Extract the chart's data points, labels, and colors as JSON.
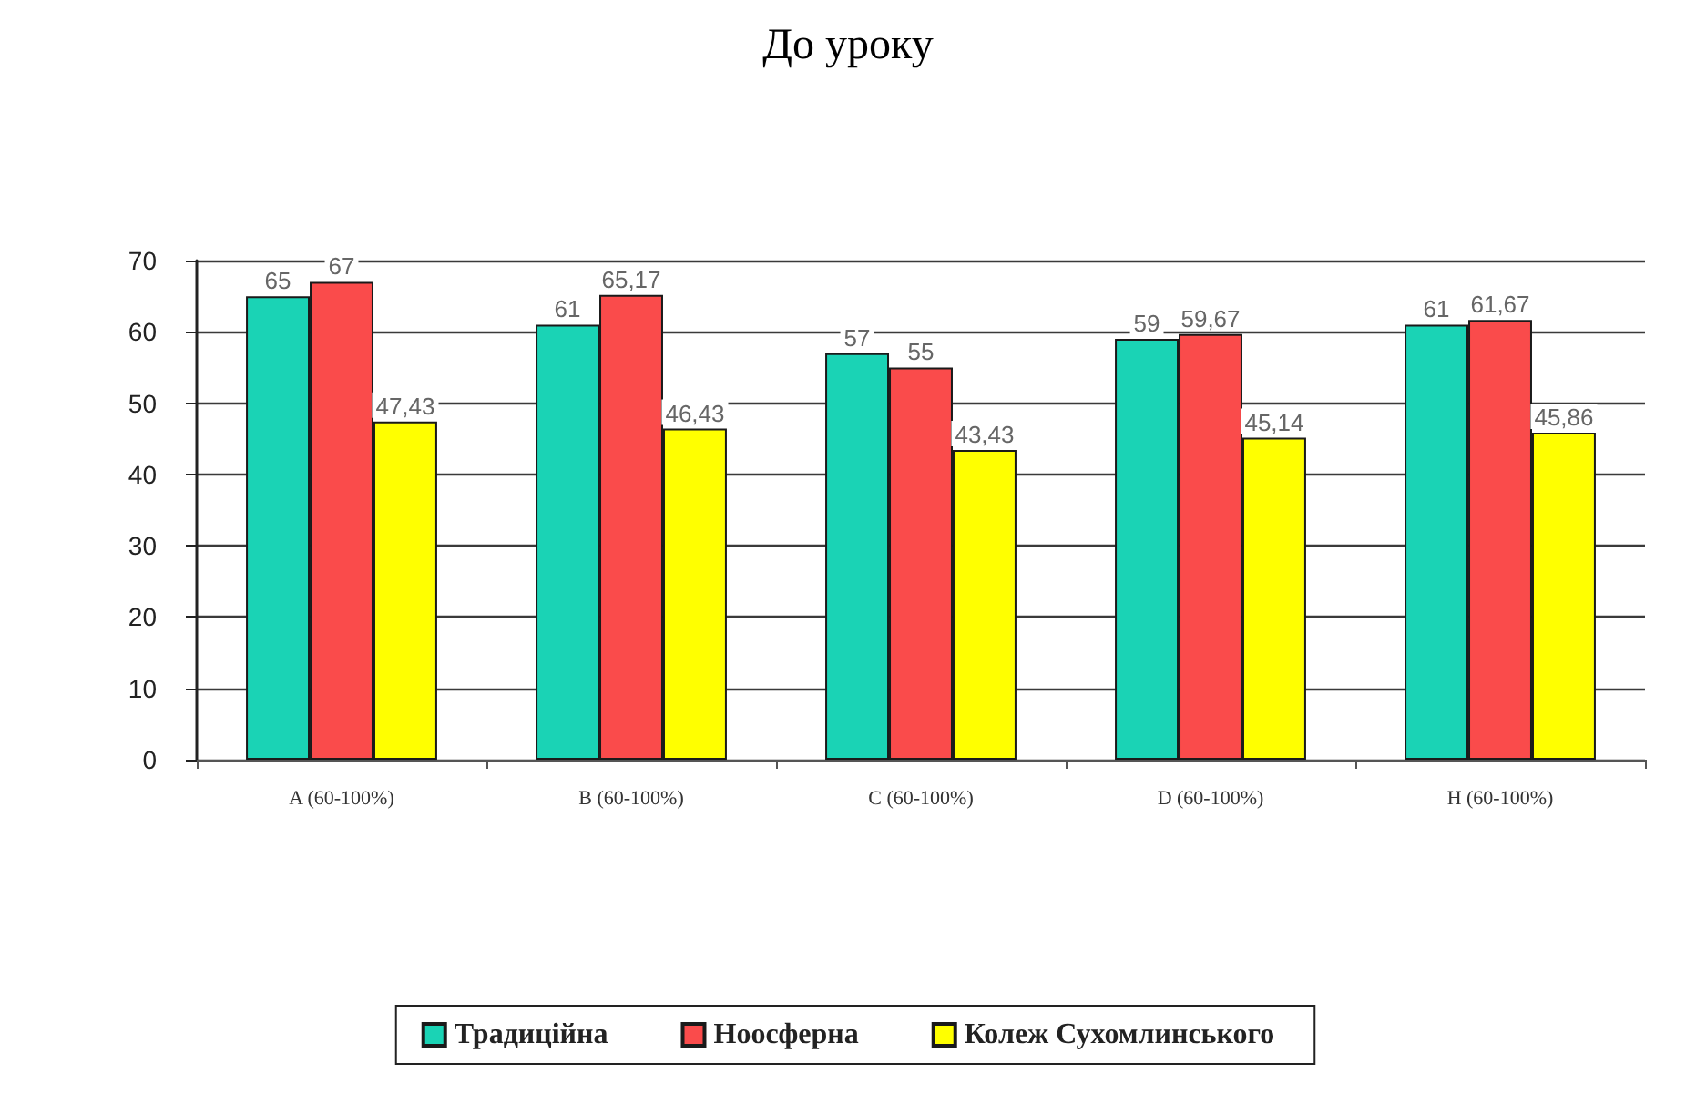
{
  "chart_data": {
    "type": "bar",
    "title": "До уроку",
    "categories": [
      "A (60-100%)",
      "B (60-100%)",
      "C (60-100%)",
      "D (60-100%)",
      "H (60-100%)"
    ],
    "series": [
      {
        "name": "Традиційна",
        "color": "#1ad3b5",
        "values": [
          65,
          61,
          57,
          59,
          61
        ],
        "value_labels": [
          "65",
          "61",
          "57",
          "59",
          "61"
        ]
      },
      {
        "name": "Ноосферна",
        "color": "#fa4b4b",
        "values": [
          67,
          65.17,
          55,
          59.67,
          61.67
        ],
        "value_labels": [
          "67",
          "65,17",
          "55",
          "59,67",
          "61,67"
        ]
      },
      {
        "name": "Колеж Сухомлинського",
        "color": "#ffff00",
        "values": [
          47.43,
          46.43,
          43.43,
          45.14,
          45.86
        ],
        "value_labels": [
          "47,43",
          "46,43",
          "43,43",
          "45,14",
          "45,86"
        ]
      }
    ],
    "ylim": [
      0,
      70
    ],
    "yticks": [
      0,
      10,
      20,
      30,
      40,
      50,
      60,
      70
    ],
    "grid": "y",
    "legend": "bottom"
  }
}
